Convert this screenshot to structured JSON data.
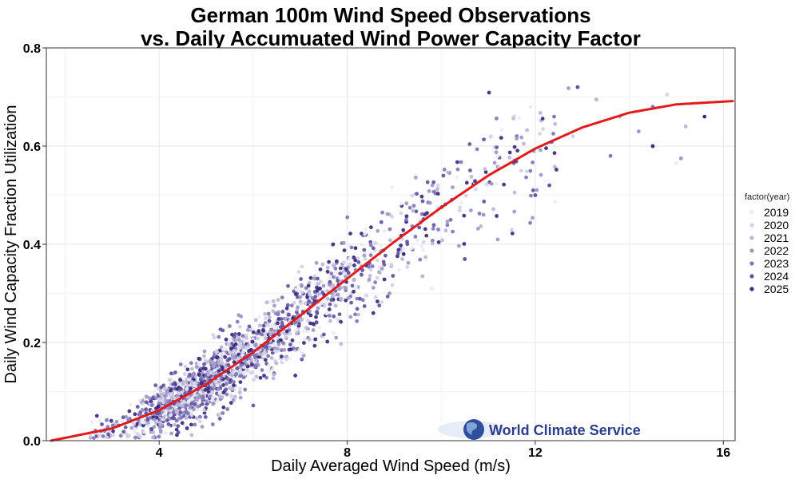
{
  "chart_data": {
    "type": "scatter",
    "title_line1": "German 100m Wind Speed Observations",
    "title_line2": "vs. Daily Accumuated Wind Power Capacity Factor",
    "xlabel": "Daily Averaged Wind Speed (m/s)",
    "ylabel": "Daily Wind Capacity Fraction Utilization",
    "xlim": [
      1.6,
      16.25
    ],
    "ylim": [
      0.0,
      0.8
    ],
    "x_ticks": [
      4,
      8,
      12,
      16
    ],
    "y_ticks": [
      0.0,
      0.2,
      0.4,
      0.6,
      0.8
    ],
    "y_tick_labels": [
      "0.0",
      "0.2",
      "0.4",
      "0.6",
      "0.8"
    ],
    "grid": true,
    "legend": {
      "title": "factor(year)",
      "placement": "right",
      "entries": [
        "2019",
        "2020",
        "2021",
        "2022",
        "2023",
        "2024",
        "2025"
      ]
    },
    "series_colors": [
      "#ecebf3",
      "#d4d2e6",
      "#b9b6d8",
      "#9d97c8",
      "#7f76b8",
      "#5f52a2",
      "#3b2a80"
    ],
    "fit_curve": {
      "color": "#e01b1b",
      "points": [
        [
          1.7,
          0.0
        ],
        [
          3,
          0.025
        ],
        [
          4,
          0.062
        ],
        [
          5,
          0.115
        ],
        [
          6,
          0.18
        ],
        [
          7,
          0.255
        ],
        [
          8,
          0.33
        ],
        [
          9,
          0.405
        ],
        [
          10,
          0.475
        ],
        [
          11,
          0.54
        ],
        [
          12,
          0.595
        ],
        [
          13,
          0.638
        ],
        [
          14,
          0.668
        ],
        [
          15,
          0.685
        ],
        [
          16.25,
          0.692
        ]
      ]
    },
    "scatter_model": {
      "count": 1800,
      "x_min": 2.5,
      "x_max": 16.2,
      "sparse_points": [
        [
          13.3,
          0.695
        ],
        [
          12.9,
          0.72
        ],
        [
          14.8,
          0.705
        ],
        [
          14.5,
          0.68
        ],
        [
          15.0,
          0.565
        ],
        [
          15.1,
          0.575
        ],
        [
          15.6,
          0.66
        ],
        [
          13.8,
          0.66
        ],
        [
          12.0,
          0.5
        ],
        [
          11.7,
          0.55
        ],
        [
          12.4,
          0.66
        ],
        [
          11.2,
          0.58
        ],
        [
          10.9,
          0.46
        ],
        [
          9.2,
          0.38
        ],
        [
          9.6,
          0.335
        ],
        [
          10.5,
          0.37
        ],
        [
          12.8,
          0.62
        ],
        [
          13.6,
          0.58
        ],
        [
          11.9,
          0.68
        ],
        [
          14.2,
          0.63
        ],
        [
          14.5,
          0.6
        ],
        [
          15.2,
          0.64
        ],
        [
          12.3,
          0.52
        ],
        [
          11.5,
          0.43
        ],
        [
          10.2,
          0.45
        ],
        [
          9.8,
          0.31
        ],
        [
          8.9,
          0.3
        ]
      ]
    }
  },
  "watermark": {
    "text": "World Climate Service"
  }
}
